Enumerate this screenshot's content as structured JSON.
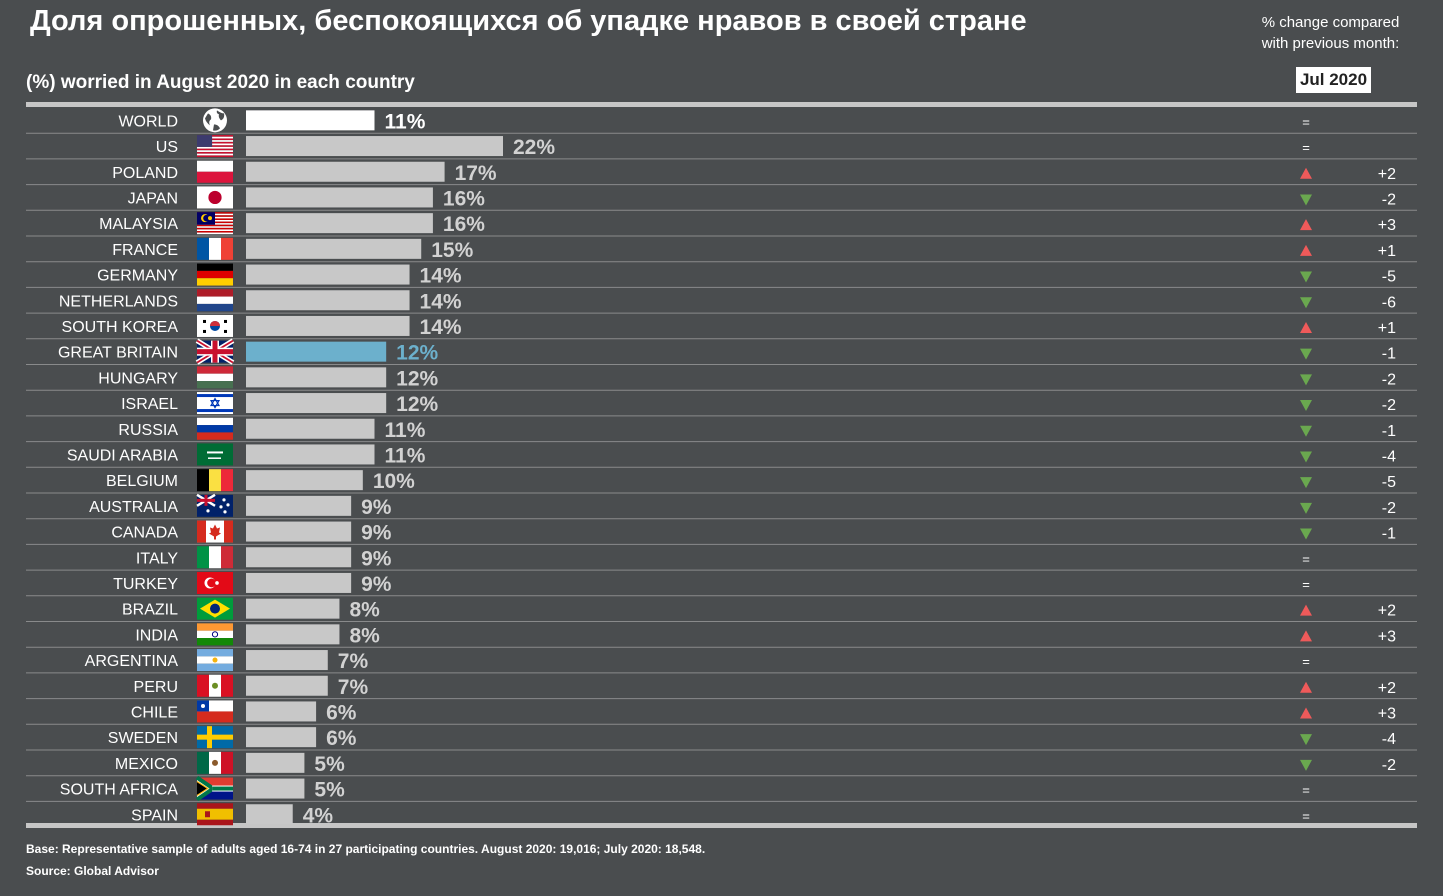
{
  "header": {
    "title": "Доля опрошенных, беспокоящихся об упадке нравов в своей стране",
    "subtitle": "(%) worried in August 2020 in each country",
    "change_line1": "% change compared",
    "change_line2": "with previous month:",
    "month": "Jul 2020"
  },
  "footer": {
    "base": "Base: Representative sample of adults aged 16-74 in 27 participating countries. August 2020: 19,016; July 2020: 18,548.",
    "source": "Source: Global Advisor"
  },
  "colors": {
    "background": "#4a4d4f",
    "bar": "#c8c8c8",
    "world_bar": "#ffffff",
    "highlight_bar": "#6cb0cc",
    "up": "#ef5a5a",
    "down": "#6aa84f"
  },
  "chart_data": {
    "type": "bar",
    "orientation": "horizontal",
    "title": "Доля опрошенных, беспокоящихся об упадке нравов в своей стране",
    "subtitle": "(%) worried in August 2020 in each country",
    "categories": [
      "WORLD",
      "US",
      "POLAND",
      "JAPAN",
      "MALAYSIA",
      "FRANCE",
      "GERMANY",
      "NETHERLANDS",
      "SOUTH KOREA",
      "GREAT BRITAIN",
      "HUNGARY",
      "ISRAEL",
      "RUSSIA",
      "SAUDI ARABIA",
      "BELGIUM",
      "AUSTRALIA",
      "CANADA",
      "ITALY",
      "TURKEY",
      "BRAZIL",
      "INDIA",
      "ARGENTINA",
      "PERU",
      "CHILE",
      "SWEDEN",
      "MEXICO",
      "SOUTH AFRICA",
      "SPAIN"
    ],
    "values": [
      11,
      22,
      17,
      16,
      16,
      15,
      14,
      14,
      14,
      12,
      12,
      12,
      11,
      11,
      10,
      9,
      9,
      9,
      9,
      8,
      8,
      7,
      7,
      6,
      6,
      5,
      5,
      4
    ],
    "value_labels": [
      "11%",
      "22%",
      "17%",
      "16%",
      "16%",
      "15%",
      "14%",
      "14%",
      "14%",
      "12%",
      "12%",
      "12%",
      "11%",
      "11%",
      "10%",
      "9%",
      "9%",
      "9%",
      "9%",
      "8%",
      "8%",
      "7%",
      "7%",
      "6%",
      "6%",
      "5%",
      "5%",
      "4%"
    ],
    "change_vs_jul_2020": [
      0,
      0,
      2,
      -2,
      3,
      1,
      -5,
      -6,
      1,
      -1,
      -2,
      -2,
      -1,
      -4,
      -5,
      -2,
      -1,
      0,
      0,
      2,
      3,
      0,
      2,
      3,
      -4,
      -2,
      0,
      0
    ],
    "change_labels": [
      "=",
      "=",
      "+2",
      "-2",
      "+3",
      "+1",
      "-5",
      "-6",
      "+1",
      "-1",
      "-2",
      "-2",
      "-1",
      "-4",
      "-5",
      "-2",
      "-1",
      "=",
      "=",
      "+2",
      "+3",
      "=",
      "+2",
      "+3",
      "-4",
      "-2",
      "=",
      "="
    ],
    "icons": [
      "globe-icon",
      "flag-us-icon",
      "flag-poland-icon",
      "flag-japan-icon",
      "flag-malaysia-icon",
      "flag-france-icon",
      "flag-germany-icon",
      "flag-netherlands-icon",
      "flag-south-korea-icon",
      "flag-great-britain-icon",
      "flag-hungary-icon",
      "flag-israel-icon",
      "flag-russia-icon",
      "flag-saudi-arabia-icon",
      "flag-belgium-icon",
      "flag-australia-icon",
      "flag-canada-icon",
      "flag-italy-icon",
      "flag-turkey-icon",
      "flag-brazil-icon",
      "flag-india-icon",
      "flag-argentina-icon",
      "flag-peru-icon",
      "flag-chile-icon",
      "flag-sweden-icon",
      "flag-mexico-icon",
      "flag-south-africa-icon",
      "flag-spain-icon"
    ],
    "xlim": [
      0,
      22
    ],
    "grid": false
  }
}
